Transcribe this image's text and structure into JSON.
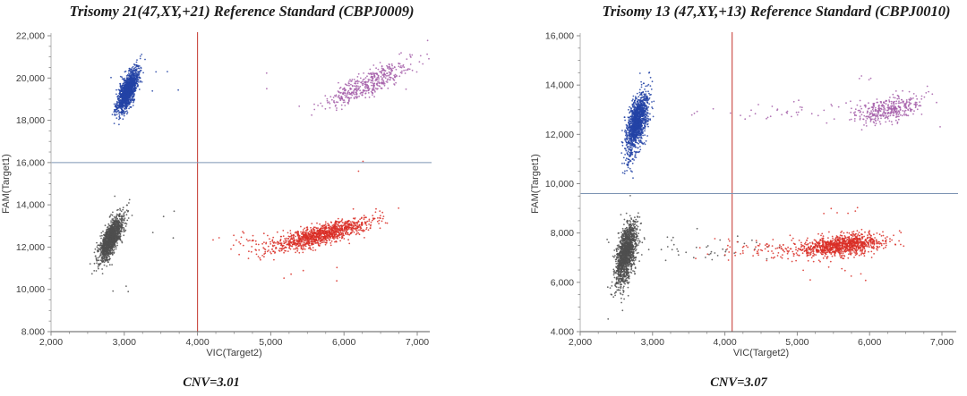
{
  "page": {
    "background": "#ffffff"
  },
  "colors": {
    "axis_line_y": "#b5b5b5",
    "axis_line_x": "#5a5a5a",
    "tick": "#8a8a8a",
    "tick_text": "#3d3d3d",
    "title_text": "#1b1b1b",
    "cluster_blue": "#2343a6",
    "cluster_purple": "#a55fa9",
    "cluster_gray": "#4f4f4f",
    "cluster_red": "#d92e26",
    "threshold_vertical": "#c9473f",
    "threshold_horizontal": "#7e95b4"
  },
  "chart_data": [
    {
      "type": "scatter",
      "title": "Trisomy 21(47,XY,+21) Reference Standard (CBPJ0009)",
      "cnv": "CNV=3.01",
      "xlabel": "VIC(Target2)",
      "ylabel": "FAM(Target1)",
      "xlim": [
        2000,
        7000
      ],
      "ylim": [
        8000,
        22000
      ],
      "x_tick_values": [
        2000,
        3000,
        4000,
        5000,
        6000,
        7000
      ],
      "x_tick_labels": [
        "2,000",
        "3,000",
        "4,000",
        "5,000",
        "6,000",
        "7,000"
      ],
      "y_tick_values": [
        22000,
        20000,
        18000,
        16000,
        14000,
        12000,
        10000,
        8000
      ],
      "y_tick_labels": [
        "22,000",
        "20,000",
        "18,000",
        "16,000",
        "14,000",
        "12,000",
        "10,000",
        "8.000"
      ],
      "x_minor_step": 250,
      "y_minor_step": 500,
      "grid": false,
      "legend": false,
      "thresholds": {
        "x": 4000,
        "y": 16000
      },
      "clusters": [
        {
          "name": "blue-fam-positive",
          "color": "#2343a6",
          "count": 1300,
          "cx": 3050,
          "cy": 19400,
          "sx": 75,
          "sy": 520,
          "rho": 0.7
        },
        {
          "name": "purple-double-positive",
          "color": "#a55fa9",
          "count": 450,
          "cx": 6350,
          "cy": 19750,
          "sx": 280,
          "sy": 540,
          "rho": 0.85
        },
        {
          "name": "gray-double-negative",
          "color": "#4f4f4f",
          "count": 1300,
          "cx": 2820,
          "cy": 12400,
          "sx": 80,
          "sy": 520,
          "rho": 0.7
        },
        {
          "name": "red-vic-positive",
          "color": "#d92e26",
          "count": 1100,
          "cx": 5700,
          "cy": 12600,
          "sx": 330,
          "sy": 380,
          "rho": 0.8
        },
        {
          "name": "red-scatter",
          "color": "#d92e26",
          "count": 50,
          "cx": 4900,
          "cy": 12300,
          "sx": 380,
          "sy": 300,
          "rho": 0.2
        },
        {
          "name": "gray-noise",
          "color": "#4f4f4f",
          "count": 7,
          "cx": 3300,
          "cy": 13600,
          "sx": 350,
          "sy": 900,
          "rho": 0
        },
        {
          "name": "blue-noise",
          "color": "#2343a6",
          "count": 5,
          "cx": 3550,
          "cy": 19900,
          "sx": 350,
          "sy": 450,
          "rho": 0
        },
        {
          "name": "purple-noise",
          "color": "#a55fa9",
          "count": 6,
          "cx": 5650,
          "cy": 19400,
          "sx": 420,
          "sy": 650,
          "rho": 0
        },
        {
          "name": "red-noise-low",
          "color": "#d92e26",
          "count": 5,
          "cx": 5450,
          "cy": 10900,
          "sx": 350,
          "sy": 250,
          "rho": 0
        },
        {
          "name": "red-noise-high",
          "color": "#d92e26",
          "count": 2,
          "cx": 6300,
          "cy": 15900,
          "sx": 120,
          "sy": 200,
          "rho": 0
        },
        {
          "name": "gray-noise-low",
          "color": "#4f4f4f",
          "count": 3,
          "cx": 2950,
          "cy": 10100,
          "sx": 120,
          "sy": 200,
          "rho": 0
        }
      ]
    },
    {
      "type": "scatter",
      "title": "Trisomy 13 (47,XY,+13) Reference Standard (CBPJ0010)",
      "cnv": "CNV=3.07",
      "xlabel": "VIC(Target2)",
      "ylabel": "FAM(Target1)",
      "xlim": [
        2000,
        7000
      ],
      "ylim": [
        4000,
        16000
      ],
      "x_tick_values": [
        2000,
        3000,
        4000,
        5000,
        6000,
        7000
      ],
      "x_tick_labels": [
        "2,000",
        "3,000",
        "4,000",
        "5,000",
        "6,000",
        "7,000"
      ],
      "y_tick_values": [
        16000,
        14000,
        12000,
        10000,
        8000,
        6000,
        4000
      ],
      "y_tick_labels": [
        "16,000",
        "14,000",
        "12,000",
        "10,000",
        "8,000",
        "6,000",
        "4.000"
      ],
      "x_minor_step": 250,
      "y_minor_step": 500,
      "grid": false,
      "legend": false,
      "thresholds": {
        "x": 4100,
        "y": 9600
      },
      "clusters": [
        {
          "name": "blue-fam-positive",
          "color": "#2343a6",
          "count": 1250,
          "cx": 2790,
          "cy": 12550,
          "sx": 70,
          "sy": 520,
          "rho": 0.5
        },
        {
          "name": "blue-tail",
          "color": "#2343a6",
          "count": 80,
          "cx": 2700,
          "cy": 11250,
          "sx": 60,
          "sy": 420,
          "rho": 0.45
        },
        {
          "name": "purple-double-positive",
          "color": "#a55fa9",
          "count": 360,
          "cx": 6250,
          "cy": 13000,
          "sx": 240,
          "sy": 260,
          "rho": 0.5
        },
        {
          "name": "purple-scatter",
          "color": "#a55fa9",
          "count": 55,
          "cx": 5250,
          "cy": 12900,
          "sx": 650,
          "sy": 300,
          "rho": 0
        },
        {
          "name": "purple-noise-high",
          "color": "#a55fa9",
          "count": 5,
          "cx": 6250,
          "cy": 14100,
          "sx": 250,
          "sy": 180,
          "rho": 0
        },
        {
          "name": "gray-double-negative",
          "color": "#4f4f4f",
          "count": 1350,
          "cx": 2640,
          "cy": 7250,
          "sx": 70,
          "sy": 560,
          "rho": 0.5
        },
        {
          "name": "gray-tail",
          "color": "#4f4f4f",
          "count": 90,
          "cx": 2570,
          "cy": 6050,
          "sx": 70,
          "sy": 380,
          "rho": 0.4
        },
        {
          "name": "gray-scatter-right",
          "color": "#4f4f4f",
          "count": 45,
          "cx": 3600,
          "cy": 7400,
          "sx": 450,
          "sy": 280,
          "rho": 0
        },
        {
          "name": "red-vic-positive",
          "color": "#d92e26",
          "count": 1000,
          "cx": 5620,
          "cy": 7500,
          "sx": 300,
          "sy": 230,
          "rho": 0.4
        },
        {
          "name": "red-scatter-left",
          "color": "#d92e26",
          "count": 85,
          "cx": 4650,
          "cy": 7350,
          "sx": 480,
          "sy": 230,
          "rho": 0
        },
        {
          "name": "red-noise-below",
          "color": "#d92e26",
          "count": 8,
          "cx": 5700,
          "cy": 6500,
          "sx": 350,
          "sy": 200,
          "rho": 0
        },
        {
          "name": "red-noise-above",
          "color": "#d92e26",
          "count": 6,
          "cx": 5600,
          "cy": 8800,
          "sx": 180,
          "sy": 150,
          "rho": 0
        },
        {
          "name": "blue-noise",
          "color": "#2343a6",
          "count": 3,
          "cx": 2950,
          "cy": 14300,
          "sx": 150,
          "sy": 250,
          "rho": 0
        }
      ]
    }
  ]
}
